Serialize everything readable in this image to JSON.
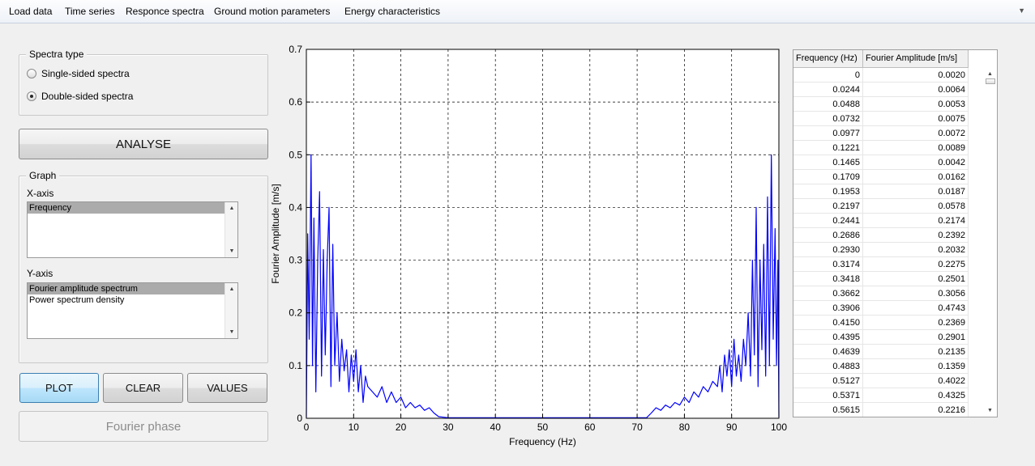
{
  "menu": {
    "items": [
      "Load data",
      "Time series",
      "Responce spectra",
      "Ground motion parameters",
      "Energy characteristics"
    ]
  },
  "spectra_type": {
    "title": "Spectra type",
    "options": [
      "Single-sided spectra",
      "Double-sided spectra"
    ],
    "selected": "Double-sided spectra"
  },
  "analyse_button": "ANALYSE",
  "graph": {
    "title": "Graph",
    "x_axis_label": "X-axis",
    "x_axis_options": [
      "Frequency"
    ],
    "x_axis_selected": "Frequency",
    "y_axis_label": "Y-axis",
    "y_axis_options": [
      "Fourier amplitude spectrum",
      "Power spectrum density"
    ],
    "y_axis_selected": "Fourier amplitude spectrum"
  },
  "buttons": {
    "plot": "PLOT",
    "clear": "CLEAR",
    "values": "VALUES",
    "fourier_phase": "Fourier phase"
  },
  "chart_data": {
    "type": "line",
    "title": "",
    "xlabel": "Frequency (Hz)",
    "ylabel": "Fourier Amplitude [m/s]",
    "xlim": [
      0,
      100
    ],
    "ylim": [
      0,
      0.7
    ],
    "xticks": [
      0,
      10,
      20,
      30,
      40,
      50,
      60,
      70,
      80,
      90,
      100
    ],
    "yticks": [
      0,
      0.1,
      0.2,
      0.3,
      0.4,
      0.5,
      0.6,
      0.7
    ],
    "grid": true,
    "line_color": "#0000ff",
    "series": [
      {
        "x": [
          0,
          0.3,
          0.6,
          1.0,
          1.3,
          1.6,
          2.0,
          2.4,
          2.8,
          3.2,
          3.6,
          4.0,
          4.4,
          4.8,
          5.2,
          5.6,
          6.0,
          6.5,
          7.0,
          7.5,
          8.0,
          8.5,
          9.0,
          9.5,
          10.0,
          10.5,
          11.0,
          11.5,
          12.0,
          12.5,
          13.0,
          14.0,
          15.0,
          16.0,
          17.0,
          18.0,
          19.0,
          20.0,
          21.0,
          22.0,
          23.0,
          24.0,
          25.0,
          26.0,
          27.0,
          28.0,
          29.0,
          30.0,
          72.0,
          73.0,
          74.0,
          75.0,
          76.0,
          77.0,
          78.0,
          79.0,
          80.0,
          81.0,
          82.0,
          83.0,
          84.0,
          85.0,
          86.0,
          87.0,
          87.5,
          88.0,
          88.5,
          89.0,
          89.5,
          90.0,
          90.5,
          91.0,
          91.5,
          92.0,
          92.5,
          93.0,
          93.5,
          94.0,
          94.4,
          94.8,
          95.2,
          95.6,
          96.0,
          96.4,
          96.8,
          97.2,
          97.6,
          98.0,
          98.4,
          98.8,
          99.2,
          99.5,
          99.8,
          100.0
        ],
        "y": [
          0.002,
          0.35,
          0.15,
          0.5,
          0.1,
          0.38,
          0.05,
          0.3,
          0.43,
          0.08,
          0.32,
          0.12,
          0.3,
          0.4,
          0.06,
          0.33,
          0.1,
          0.2,
          0.07,
          0.15,
          0.09,
          0.13,
          0.05,
          0.12,
          0.07,
          0.13,
          0.05,
          0.1,
          0.03,
          0.08,
          0.06,
          0.05,
          0.04,
          0.06,
          0.03,
          0.05,
          0.03,
          0.04,
          0.02,
          0.03,
          0.02,
          0.025,
          0.015,
          0.02,
          0.01,
          0.003,
          0.002,
          0.001,
          0.001,
          0.01,
          0.02,
          0.015,
          0.025,
          0.02,
          0.03,
          0.025,
          0.04,
          0.03,
          0.05,
          0.04,
          0.06,
          0.05,
          0.07,
          0.06,
          0.1,
          0.05,
          0.12,
          0.08,
          0.13,
          0.06,
          0.15,
          0.08,
          0.12,
          0.07,
          0.15,
          0.1,
          0.2,
          0.08,
          0.3,
          0.12,
          0.4,
          0.06,
          0.3,
          0.13,
          0.33,
          0.08,
          0.42,
          0.1,
          0.5,
          0.15,
          0.36,
          0.1,
          0.3,
          0.002
        ]
      }
    ]
  },
  "table": {
    "headers": [
      "Frequency (Hz)",
      "Fourier Amplitude [m/s]"
    ],
    "rows": [
      [
        "0",
        "0.0020"
      ],
      [
        "0.0244",
        "0.0064"
      ],
      [
        "0.0488",
        "0.0053"
      ],
      [
        "0.0732",
        "0.0075"
      ],
      [
        "0.0977",
        "0.0072"
      ],
      [
        "0.1221",
        "0.0089"
      ],
      [
        "0.1465",
        "0.0042"
      ],
      [
        "0.1709",
        "0.0162"
      ],
      [
        "0.1953",
        "0.0187"
      ],
      [
        "0.2197",
        "0.0578"
      ],
      [
        "0.2441",
        "0.2174"
      ],
      [
        "0.2686",
        "0.2392"
      ],
      [
        "0.2930",
        "0.2032"
      ],
      [
        "0.3174",
        "0.2275"
      ],
      [
        "0.3418",
        "0.2501"
      ],
      [
        "0.3662",
        "0.3056"
      ],
      [
        "0.3906",
        "0.4743"
      ],
      [
        "0.4150",
        "0.2369"
      ],
      [
        "0.4395",
        "0.2901"
      ],
      [
        "0.4639",
        "0.2135"
      ],
      [
        "0.4883",
        "0.1359"
      ],
      [
        "0.5127",
        "0.4022"
      ],
      [
        "0.5371",
        "0.4325"
      ],
      [
        "0.5615",
        "0.2216"
      ]
    ]
  }
}
